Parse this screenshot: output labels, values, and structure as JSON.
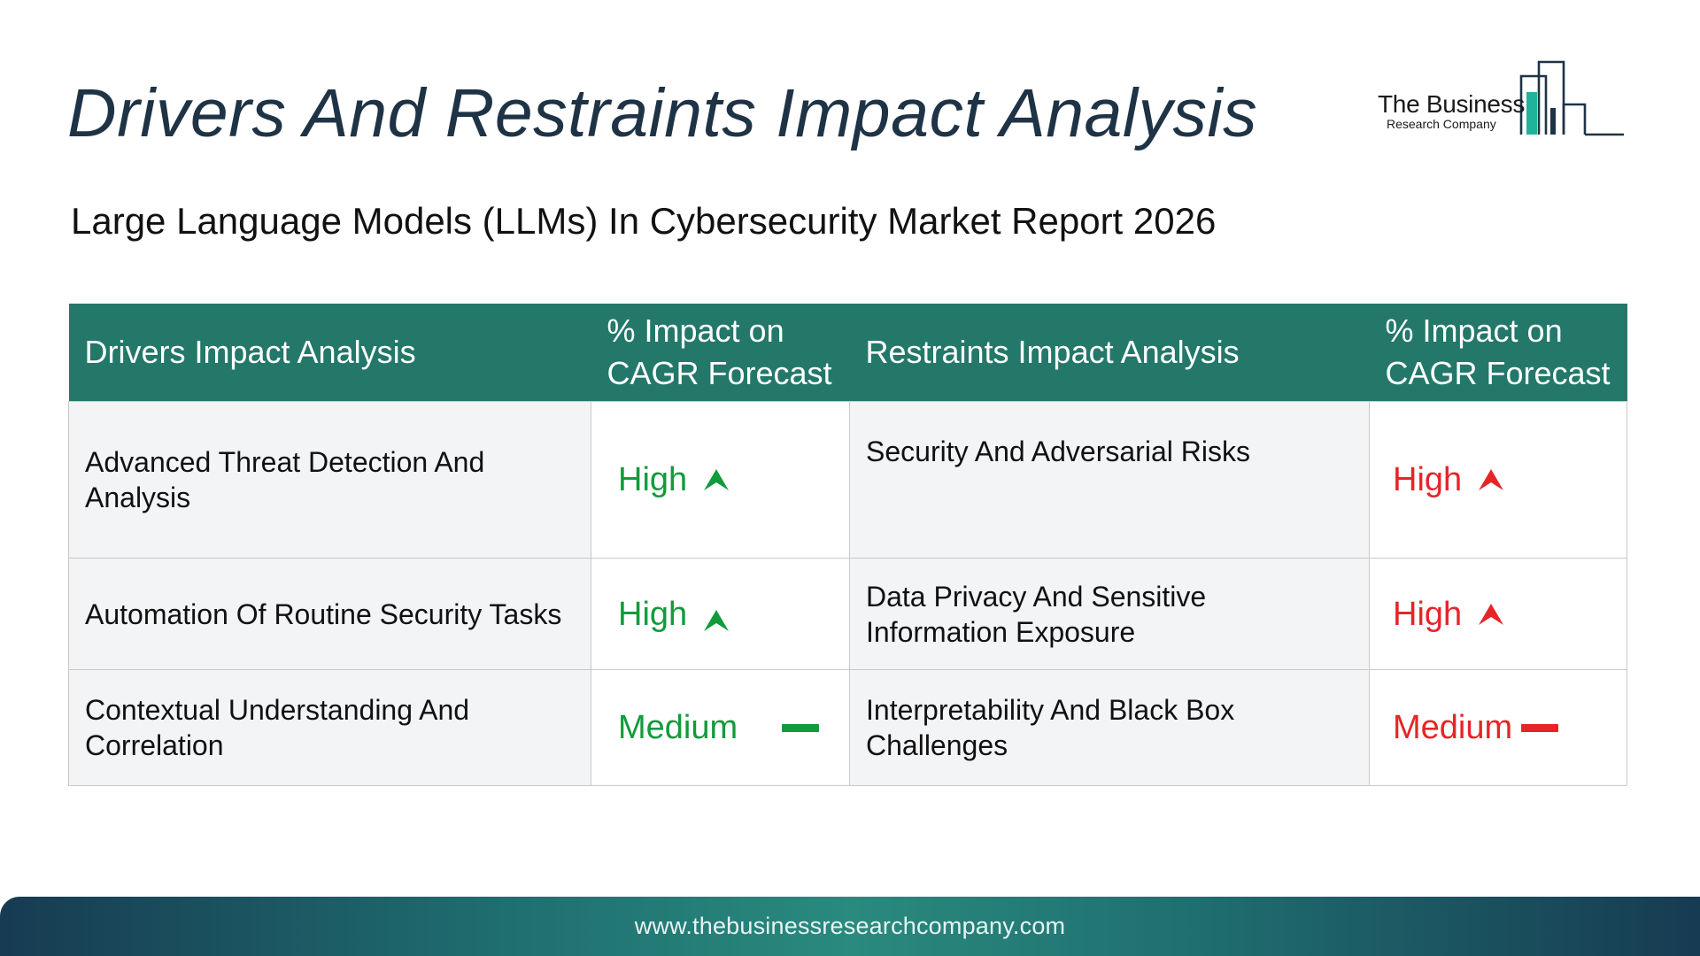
{
  "header": {
    "title": "Drivers And Restraints Impact Analysis",
    "subtitle": "Large Language Models (LLMs) In Cybersecurity Market Report 2026"
  },
  "logo": {
    "name": "The Business",
    "tagline": "Research Company"
  },
  "table": {
    "headers": {
      "drivers": "Drivers Impact Analysis",
      "drivers_impact": "% Impact on CAGR Forecast",
      "restraints": "Restraints Impact Analysis",
      "restraints_impact": "% Impact on CAGR Forecast"
    },
    "rows": [
      {
        "driver": "Advanced Threat Detection And Analysis",
        "driver_impact": "High",
        "driver_icon": "arrow-up-icon",
        "restraint": "Security And Adversarial Risks",
        "restraint_impact": "High",
        "restraint_icon": "arrow-up-icon"
      },
      {
        "driver": "Automation Of Routine Security Tasks",
        "driver_impact": "High",
        "driver_icon": "arrow-up-icon",
        "restraint": "Data Privacy And Sensitive Information Exposure",
        "restraint_impact": "High",
        "restraint_icon": "arrow-up-icon"
      },
      {
        "driver": "Contextual Understanding And Correlation",
        "driver_impact": "Medium",
        "driver_icon": "dash-icon",
        "restraint": "Interpretability And Black Box Challenges",
        "restraint_impact": "Medium",
        "restraint_icon": "dash-icon"
      }
    ]
  },
  "footer": {
    "url": "www.thebusinessresearchcompany.com"
  },
  "colors": {
    "title": "#1f3346",
    "header_bg": "#23786a",
    "driver_level": "#119b3b",
    "restraint_level": "#e52528",
    "row_bg": "#f3f4f6"
  }
}
